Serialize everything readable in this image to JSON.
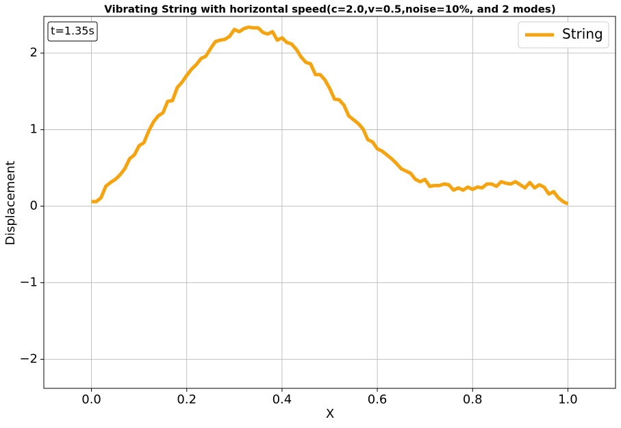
{
  "chart_data": {
    "type": "line",
    "title": "Vibrating String with horizontal speed(c=2.0,v=0.5,noise=10%, and 2 modes)",
    "xlabel": "X",
    "ylabel": "Displacement",
    "annotation": "t=1.35s",
    "x": [
      0,
      0.01,
      0.02,
      0.03,
      0.04,
      0.05,
      0.06,
      0.07,
      0.08,
      0.09,
      0.1,
      0.11,
      0.12,
      0.13,
      0.14,
      0.15,
      0.16,
      0.17,
      0.18,
      0.19,
      0.2,
      0.21,
      0.22,
      0.23,
      0.24,
      0.25,
      0.26,
      0.27,
      0.28,
      0.29,
      0.3,
      0.31,
      0.32,
      0.33,
      0.34,
      0.35,
      0.36,
      0.37,
      0.38,
      0.39,
      0.4,
      0.41,
      0.42,
      0.43,
      0.44,
      0.45,
      0.46,
      0.47,
      0.48,
      0.49,
      0.5,
      0.51,
      0.52,
      0.53,
      0.54,
      0.55,
      0.56,
      0.57,
      0.58,
      0.59,
      0.6,
      0.61,
      0.62,
      0.63,
      0.64,
      0.65,
      0.66,
      0.67,
      0.68,
      0.69,
      0.7,
      0.71,
      0.72,
      0.73,
      0.74,
      0.75,
      0.76,
      0.77,
      0.78,
      0.79,
      0.8,
      0.81,
      0.82,
      0.83,
      0.84,
      0.85,
      0.86,
      0.87,
      0.88,
      0.89,
      0.9,
      0.91,
      0.92,
      0.93,
      0.94,
      0.95,
      0.96,
      0.97,
      0.98,
      0.99,
      1.0
    ],
    "series": [
      {
        "name": "String",
        "color": "#f5a30f",
        "values": [
          0.06,
          0.06,
          0.11,
          0.26,
          0.31,
          0.35,
          0.41,
          0.49,
          0.62,
          0.67,
          0.79,
          0.83,
          0.98,
          1.1,
          1.18,
          1.22,
          1.37,
          1.38,
          1.55,
          1.62,
          1.71,
          1.79,
          1.85,
          1.93,
          1.96,
          2.06,
          2.15,
          2.17,
          2.18,
          2.22,
          2.31,
          2.28,
          2.32,
          2.34,
          2.33,
          2.33,
          2.27,
          2.25,
          2.28,
          2.17,
          2.2,
          2.14,
          2.12,
          2.05,
          1.95,
          1.88,
          1.86,
          1.72,
          1.72,
          1.65,
          1.54,
          1.4,
          1.39,
          1.32,
          1.18,
          1.13,
          1.08,
          1.01,
          0.87,
          0.84,
          0.75,
          0.72,
          0.67,
          0.62,
          0.56,
          0.49,
          0.46,
          0.43,
          0.35,
          0.32,
          0.35,
          0.26,
          0.27,
          0.27,
          0.29,
          0.28,
          0.21,
          0.24,
          0.21,
          0.25,
          0.22,
          0.25,
          0.24,
          0.29,
          0.29,
          0.26,
          0.32,
          0.3,
          0.29,
          0.32,
          0.28,
          0.24,
          0.31,
          0.24,
          0.28,
          0.25,
          0.16,
          0.19,
          0.11,
          0.06,
          0.03
        ]
      }
    ],
    "xlim": [
      -0.1,
      1.1
    ],
    "ylim": [
      -2.38,
      2.48
    ],
    "xticks": [
      {
        "value": 0,
        "label": "0.0"
      },
      {
        "value": 0.2,
        "label": "0.2"
      },
      {
        "value": 0.4,
        "label": "0.4"
      },
      {
        "value": 0.6,
        "label": "0.6"
      },
      {
        "value": 0.8,
        "label": "0.8"
      },
      {
        "value": 1,
        "label": "1.0"
      }
    ],
    "yticks": [
      {
        "value": -2,
        "label": "−2"
      },
      {
        "value": -1,
        "label": "−1"
      },
      0,
      1,
      2
    ],
    "grid": true,
    "legend": "upper right"
  }
}
